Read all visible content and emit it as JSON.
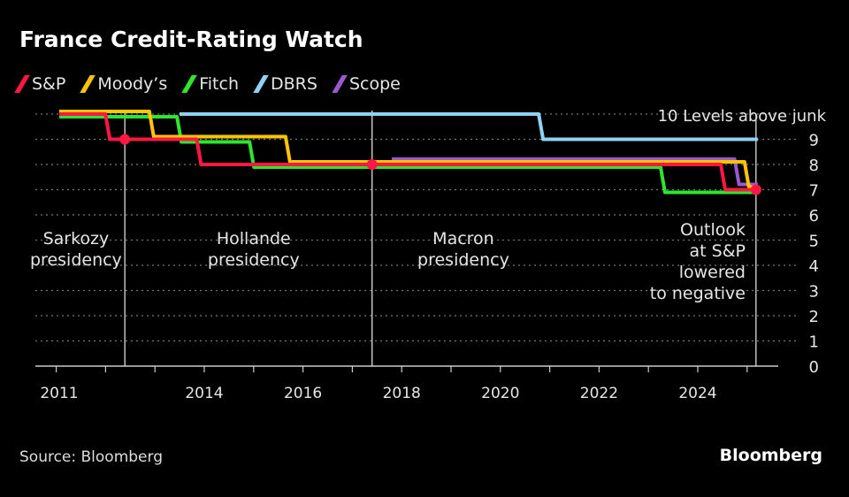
{
  "title": "France Credit-Rating Watch",
  "source": "Source: Bloomberg",
  "brand": "Bloomberg",
  "chart_data": {
    "type": "line",
    "step": true,
    "ylim": [
      0,
      10
    ],
    "yticks": [
      0,
      1,
      2,
      3,
      4,
      5,
      6,
      7,
      8,
      9,
      10
    ],
    "ytick_labels": [
      "0",
      "1",
      "2",
      "3",
      "4",
      "5",
      "6",
      "7",
      "8",
      "9",
      "10 Levels above junk"
    ],
    "xticks": [
      2011,
      2014,
      2016,
      2018,
      2020,
      2022,
      2024
    ],
    "xlim": [
      2010.6,
      2025.7
    ],
    "grid": true,
    "legend": "top-left",
    "series": [
      {
        "name": "S&P",
        "color": "#ff1744",
        "points": [
          [
            2011.06,
            10
          ],
          [
            2012.05,
            9
          ],
          [
            2013.9,
            8
          ],
          [
            2024.52,
            7
          ],
          [
            2025.18,
            7
          ]
        ]
      },
      {
        "name": "Moody’s",
        "color": "#ffc400",
        "points": [
          [
            2011.06,
            10
          ],
          [
            2012.94,
            9
          ],
          [
            2015.7,
            8
          ],
          [
            2025.0,
            7
          ],
          [
            2025.18,
            7
          ]
        ]
      },
      {
        "name": "Fitch",
        "color": "#2ee62e",
        "points": [
          [
            2011.06,
            10
          ],
          [
            2013.5,
            9
          ],
          [
            2014.97,
            8
          ],
          [
            2023.3,
            7
          ],
          [
            2025.18,
            7
          ]
        ]
      },
      {
        "name": "DBRS",
        "color": "#8fd3f4",
        "points": [
          [
            2013.5,
            10
          ],
          [
            2020.83,
            9
          ],
          [
            2025.18,
            9
          ]
        ]
      },
      {
        "name": "Scope",
        "color": "#9b59d0",
        "points": [
          [
            2017.8,
            8
          ],
          [
            2024.8,
            7
          ],
          [
            2025.18,
            7
          ]
        ]
      }
    ],
    "markers": [
      {
        "x": 2012.39,
        "y": 9,
        "color": "#ff1744"
      },
      {
        "x": 2017.4,
        "y": 8,
        "color": "#ff1744"
      },
      {
        "x": 2025.18,
        "y": 7,
        "color": "#ff1744"
      }
    ],
    "vlines": [
      2012.39,
      2017.4,
      2025.18
    ],
    "annotations": [
      {
        "x": 2011.4,
        "anchor": "middle",
        "lines": [
          "Sarkozy",
          "presidency"
        ]
      },
      {
        "x": 2015.0,
        "anchor": "middle",
        "lines": [
          "Hollande",
          "presidency"
        ]
      },
      {
        "x": 2019.25,
        "anchor": "middle",
        "lines": [
          "Macron",
          "presidency"
        ]
      },
      {
        "x": 2025.0,
        "anchor": "end",
        "lines": [
          "Outlook",
          "at S&P",
          "lowered",
          "to negative"
        ]
      }
    ]
  }
}
